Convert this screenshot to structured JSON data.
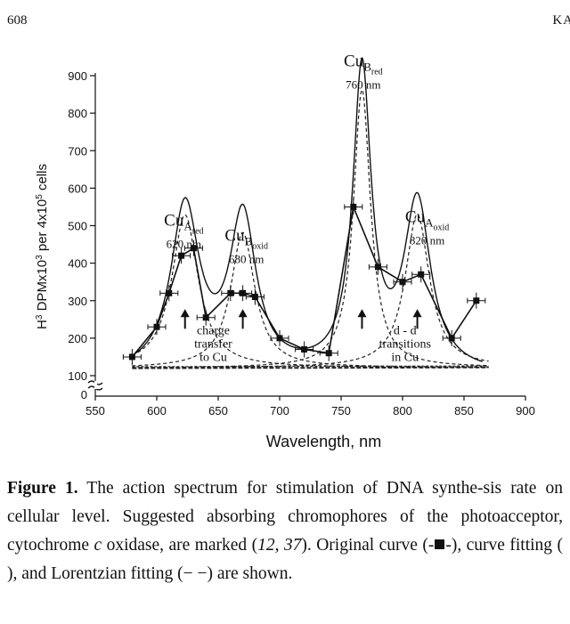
{
  "header": {
    "page_number": "608",
    "running_head": "KA"
  },
  "chart_data": {
    "type": "line",
    "xlabel": "Wavelength, nm",
    "ylabel": "H3 DPMx10^3 per 4x10^5 cells",
    "ylabel_parts": {
      "a": "H",
      "a_sup": "3",
      "b": " DPMx10",
      "b_sup": "3",
      "c": " per 4x10",
      "c_sup": "5",
      "d": " cells"
    },
    "xlim": [
      550,
      900
    ],
    "ylim": [
      0,
      900
    ],
    "x_ticks": [
      550,
      600,
      650,
      700,
      750,
      800,
      850,
      900
    ],
    "y_ticks": [
      100,
      200,
      300,
      400,
      500,
      600,
      700,
      800,
      900
    ],
    "y_break": {
      "below": 100,
      "zero_label": "0"
    },
    "series": [
      {
        "style": "line-square-errorbars",
        "x": [
          580,
          600,
          610,
          620,
          630,
          640,
          660,
          670,
          680,
          700,
          720,
          740,
          760,
          780,
          800,
          815,
          840,
          860
        ],
        "y": [
          150,
          230,
          320,
          420,
          440,
          255,
          320,
          320,
          310,
          200,
          170,
          160,
          550,
          390,
          350,
          370,
          200,
          300
        ]
      }
    ],
    "fitted_curve_peaks": [
      {
        "center": 623,
        "height": 440,
        "width": 14
      },
      {
        "center": 670,
        "height": 410,
        "width": 13
      },
      {
        "center": 767,
        "height": 800,
        "width": 9
      },
      {
        "center": 812,
        "height": 450,
        "width": 13
      }
    ],
    "lorentzian_peaks": [
      {
        "center": 623,
        "height": 430,
        "width": 13
      },
      {
        "center": 670,
        "height": 380,
        "width": 12
      },
      {
        "center": 767,
        "height": 780,
        "width": 8.5
      },
      {
        "center": 812,
        "height": 430,
        "width": 12
      }
    ],
    "annotations": [
      {
        "id": "cua",
        "base": "Cu",
        "sub": "A",
        "sub2": "red",
        "wavelength": "620 nm",
        "x": 622,
        "y": 500
      },
      {
        "id": "cub-oxid",
        "base": "Cu",
        "sub": "B",
        "sub2": "oxid",
        "wavelength": "680 nm",
        "x": 673,
        "y": 460
      },
      {
        "id": "cub-red",
        "base": "Cu",
        "sub": "B",
        "sub2": "red",
        "wavelength": "760 nm",
        "x": 768,
        "y": 925
      },
      {
        "id": "cua-oxid",
        "base": "Cu",
        "sub": "A",
        "sub2": "oxid",
        "wavelength": "820 nm",
        "x": 820,
        "y": 510
      },
      {
        "id": "charge-transfer",
        "lines": [
          "charge",
          "transfer",
          "to Cu"
        ],
        "x": 646,
        "y": 210
      },
      {
        "id": "dd-transitions",
        "lines": [
          "d - d",
          "transitions",
          "in Cu"
        ],
        "x": 802,
        "y": 210
      }
    ],
    "arrows": [
      {
        "x": 623,
        "y_from": 225,
        "y_to": 275
      },
      {
        "x": 670,
        "y_from": 225,
        "y_to": 275
      },
      {
        "x": 767,
        "y_from": 225,
        "y_to": 275
      },
      {
        "x": 812,
        "y_from": 225,
        "y_to": 275
      }
    ]
  },
  "caption": {
    "label": "Figure 1.",
    "text_1": " The action spectrum for stimulation of DNA synthe-sis rate on cellular level. Suggested absorbing chromophores of the photoacceptor, cytochrome ",
    "italic_c": "c",
    "text_2": " oxidase, are marked (",
    "ref_1": "12",
    "ref_sep": ", ",
    "ref_2": "37",
    "text_3": "). Original curve (-",
    "text_4": "-), curve fitting (    ), and Lorentzian fitting (− −) are shown."
  }
}
